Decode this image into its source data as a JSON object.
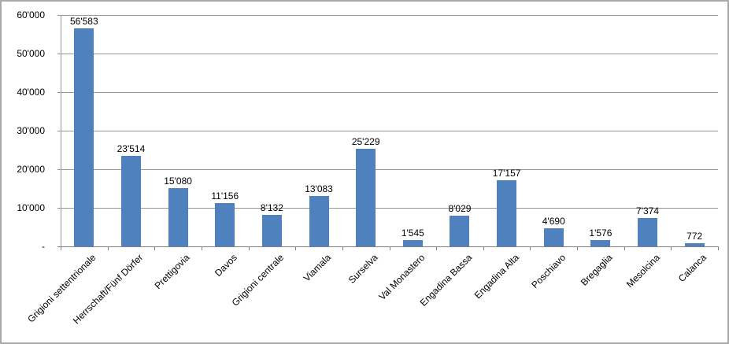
{
  "chart_data": {
    "type": "bar",
    "title": "",
    "xlabel": "",
    "ylabel": "",
    "ylim": [
      0,
      60000
    ],
    "grid": true,
    "legend": "none",
    "categories": [
      "Grigioni settentrionale",
      "Herrschaft/Fünf Dörfer",
      "Prettigovia",
      "Davos",
      "Grigioni centrale",
      "Viamala",
      "Surselva",
      "Val Monastero",
      "Engadina Bassa",
      "Engadina Alta",
      "Poschiavo",
      "Bregaglia",
      "Mesolcina",
      "Calanca"
    ],
    "values": [
      56583,
      23514,
      15080,
      11156,
      8132,
      13083,
      25229,
      1545,
      8029,
      17157,
      4690,
      1576,
      7374,
      772
    ],
    "data_labels": [
      "56'583",
      "23'514",
      "15'080",
      "11'156",
      "8'132",
      "13'083",
      "25'229",
      "1'545",
      "8'029",
      "17'157",
      "4'690",
      "1'576",
      "7'374",
      "772"
    ],
    "ytick_values": [
      60000,
      50000,
      40000,
      30000,
      20000,
      10000,
      0
    ],
    "ytick_labels": [
      "60'000",
      "50'000",
      "40'000",
      "30'000",
      "20'000",
      "10'000",
      "-"
    ],
    "colors": {
      "bar": "#4E81BD",
      "gridline": "#969696",
      "axis": "#808080",
      "text": "#000000",
      "border": "#A9A9A9",
      "background": "#FFFFFF"
    }
  }
}
